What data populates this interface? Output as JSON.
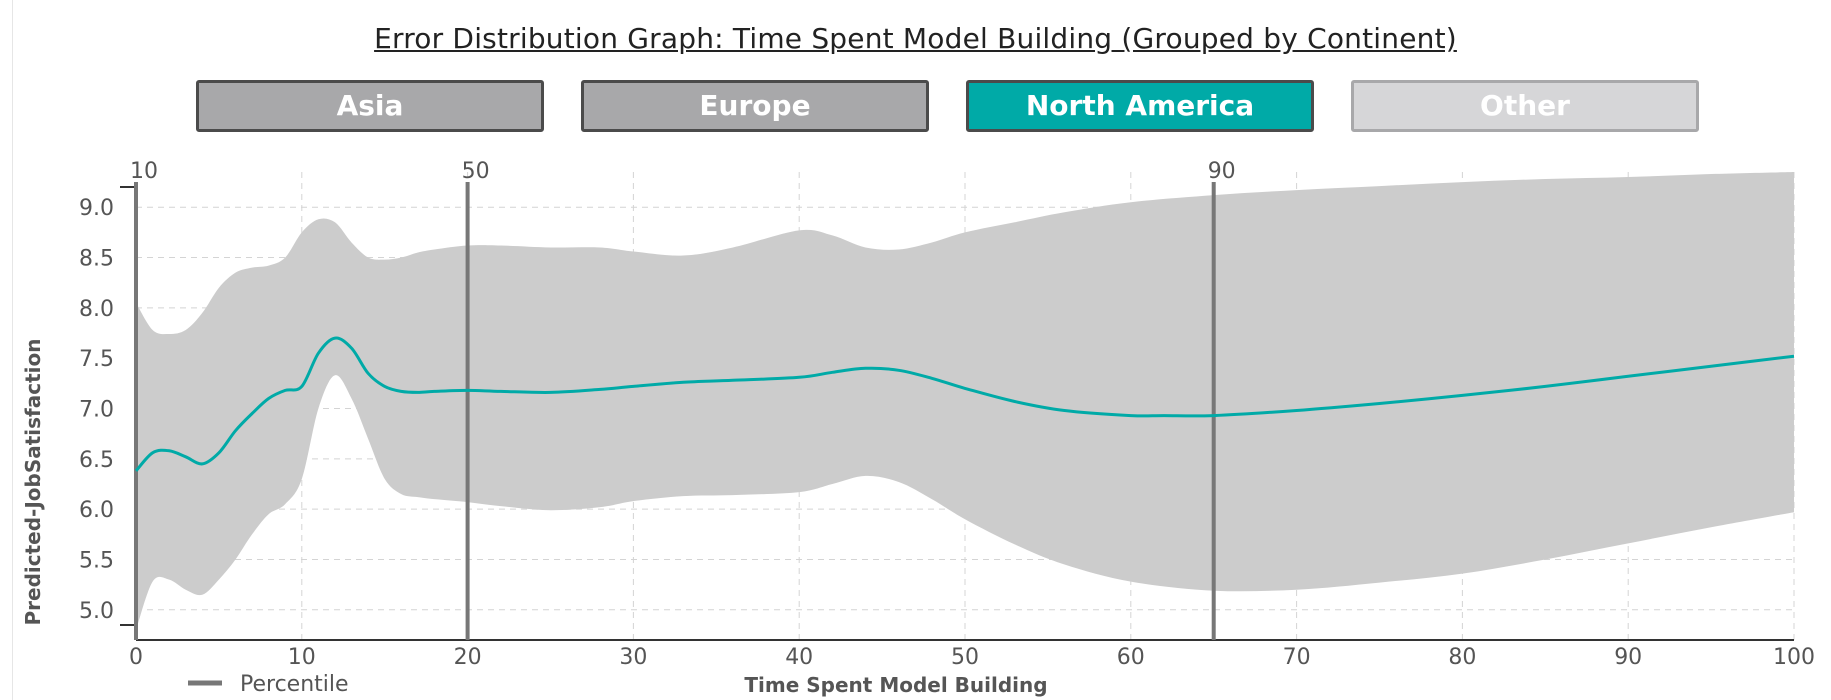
{
  "chart_data": {
    "type": "line",
    "title": "Error Distribution Graph: Time Spent Model Building (Grouped by Continent)",
    "xlabel": "Time Spent Model Building",
    "ylabel": "Predicted-JobSatisfaction",
    "xlim": [
      0,
      100
    ],
    "ylim": [
      4.7,
      9.35
    ],
    "x_ticks": [
      0,
      10,
      20,
      30,
      40,
      50,
      60,
      70,
      80,
      90,
      100
    ],
    "y_ticks": [
      5.0,
      5.5,
      6.0,
      6.5,
      7.0,
      7.5,
      8.0,
      8.5,
      9.0
    ],
    "y_tick_labels": [
      "5.0",
      "5.5",
      "6.0",
      "6.5",
      "7.0",
      "7.5",
      "8.0",
      "8.5",
      "9.0"
    ],
    "grid": true,
    "groups": [
      "Asia",
      "Europe",
      "North America",
      "Other"
    ],
    "active_group": "North America",
    "series": [
      {
        "role": "mean",
        "color": "#00aaa7",
        "x": [
          0,
          1,
          2,
          3,
          4,
          5,
          6,
          7,
          8,
          9,
          10,
          11,
          12,
          13,
          14,
          15,
          16,
          17,
          18,
          20,
          22,
          25,
          28,
          30,
          33,
          36,
          40,
          42,
          44,
          46,
          48,
          50,
          53,
          56,
          60,
          62,
          65,
          70,
          75,
          80,
          85,
          90,
          95,
          100
        ],
        "y": [
          6.38,
          6.56,
          6.58,
          6.52,
          6.45,
          6.56,
          6.78,
          6.95,
          7.1,
          7.18,
          7.22,
          7.55,
          7.7,
          7.6,
          7.35,
          7.22,
          7.17,
          7.16,
          7.17,
          7.18,
          7.17,
          7.16,
          7.19,
          7.22,
          7.26,
          7.28,
          7.31,
          7.36,
          7.4,
          7.38,
          7.3,
          7.2,
          7.07,
          6.98,
          6.93,
          6.93,
          6.93,
          6.98,
          7.05,
          7.13,
          7.22,
          7.32,
          7.42,
          7.52
        ]
      },
      {
        "role": "upper",
        "color": "#cccccc",
        "x": [
          0,
          1,
          2,
          3,
          4,
          5,
          6,
          7,
          8,
          9,
          10,
          11,
          12,
          13,
          14,
          15,
          16,
          17,
          18,
          20,
          22,
          25,
          28,
          30,
          33,
          36,
          40,
          42,
          44,
          46,
          48,
          50,
          53,
          56,
          60,
          65,
          70,
          75,
          80,
          85,
          90,
          95,
          100
        ],
        "y": [
          8.05,
          7.78,
          7.74,
          7.78,
          7.95,
          8.2,
          8.35,
          8.4,
          8.42,
          8.5,
          8.75,
          8.88,
          8.85,
          8.65,
          8.5,
          8.48,
          8.5,
          8.55,
          8.58,
          8.62,
          8.62,
          8.6,
          8.6,
          8.56,
          8.52,
          8.6,
          8.77,
          8.72,
          8.6,
          8.58,
          8.65,
          8.75,
          8.85,
          8.95,
          9.05,
          9.12,
          9.17,
          9.21,
          9.25,
          9.28,
          9.3,
          9.33,
          9.35
        ]
      },
      {
        "role": "lower",
        "color": "#cccccc",
        "x": [
          0,
          1,
          2,
          3,
          4,
          5,
          6,
          7,
          8,
          9,
          10,
          11,
          12,
          13,
          14,
          15,
          16,
          17,
          18,
          20,
          22,
          25,
          28,
          30,
          33,
          36,
          40,
          42,
          44,
          46,
          48,
          50,
          53,
          56,
          60,
          65,
          70,
          75,
          80,
          85,
          90,
          95,
          100
        ],
        "y": [
          4.8,
          5.28,
          5.3,
          5.2,
          5.15,
          5.3,
          5.5,
          5.75,
          5.95,
          6.05,
          6.3,
          7.0,
          7.33,
          7.1,
          6.7,
          6.3,
          6.15,
          6.12,
          6.1,
          6.07,
          6.03,
          5.99,
          6.02,
          6.08,
          6.13,
          6.14,
          6.17,
          6.25,
          6.33,
          6.27,
          6.1,
          5.9,
          5.65,
          5.45,
          5.28,
          5.19,
          5.2,
          5.27,
          5.36,
          5.5,
          5.66,
          5.82,
          5.97
        ]
      }
    ],
    "percentiles": [
      {
        "label": "10",
        "x": 0
      },
      {
        "label": "50",
        "x": 20
      },
      {
        "label": "90",
        "x": 65
      }
    ],
    "legend": {
      "entries": [
        {
          "label": "Percentile",
          "color": "#777777"
        }
      ],
      "position": "bottom-left"
    }
  }
}
